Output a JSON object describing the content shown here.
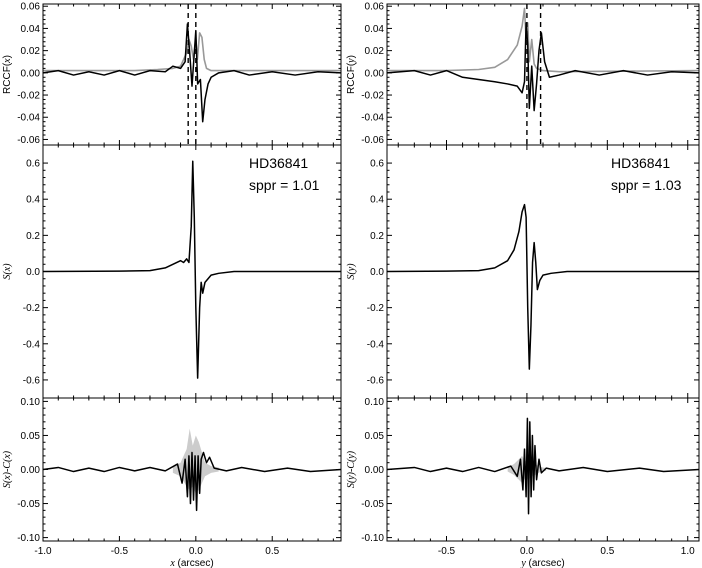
{
  "chart_data": [
    {
      "type": "line",
      "panel": "top-left",
      "ylabel_main": "RCCF(",
      "ylabel_var": "x",
      "ylabel_end": ")",
      "xlim": [
        -1.0,
        0.95
      ],
      "ylim": [
        -0.065,
        0.062
      ],
      "yticks": [
        -0.06,
        -0.04,
        -0.02,
        0.0,
        0.02,
        0.04,
        0.06
      ],
      "ytick_labels": [
        "-0.06",
        "-0.04",
        "-0.02",
        "0.00",
        "0.02",
        "0.04",
        "0.06"
      ],
      "vlines": [
        -0.05,
        0.0
      ],
      "series": [
        {
          "color": "#999999",
          "points": [
            [
              -1.0,
              0.002
            ],
            [
              -0.4,
              0.002
            ],
            [
              -0.25,
              0.003
            ],
            [
              -0.15,
              0.004
            ],
            [
              -0.1,
              0.006
            ],
            [
              -0.06,
              0.018
            ],
            [
              -0.045,
              0.03
            ],
            [
              -0.03,
              0.024
            ],
            [
              -0.015,
              0.012
            ],
            [
              0.0,
              0.03
            ],
            [
              0.01,
              0.012
            ],
            [
              0.025,
              0.036
            ],
            [
              0.04,
              0.032
            ],
            [
              0.055,
              0.012
            ],
            [
              0.07,
              0.004
            ],
            [
              0.1,
              0.002
            ],
            [
              0.2,
              0.002
            ],
            [
              0.95,
              0.002
            ]
          ]
        },
        {
          "color": "#000000",
          "points": [
            [
              -1.0,
              0.0
            ],
            [
              -0.9,
              0.002
            ],
            [
              -0.8,
              -0.002
            ],
            [
              -0.7,
              0.001
            ],
            [
              -0.6,
              -0.002
            ],
            [
              -0.5,
              0.002
            ],
            [
              -0.4,
              -0.002
            ],
            [
              -0.3,
              0.002
            ],
            [
              -0.2,
              0.001
            ],
            [
              -0.15,
              0.006
            ],
            [
              -0.1,
              0.004
            ],
            [
              -0.07,
              0.01
            ],
            [
              -0.055,
              0.044
            ],
            [
              -0.04,
              0.018
            ],
            [
              -0.025,
              -0.012
            ],
            [
              -0.012,
              0.014
            ],
            [
              0.0,
              0.038
            ],
            [
              0.012,
              -0.01
            ],
            [
              0.03,
              -0.006
            ],
            [
              0.045,
              -0.044
            ],
            [
              0.06,
              -0.024
            ],
            [
              0.08,
              -0.01
            ],
            [
              0.1,
              -0.004
            ],
            [
              0.15,
              0.0
            ],
            [
              0.25,
              0.002
            ],
            [
              0.35,
              -0.002
            ],
            [
              0.5,
              0.001
            ],
            [
              0.65,
              -0.002
            ],
            [
              0.8,
              0.001
            ],
            [
              0.95,
              0.0
            ]
          ]
        }
      ]
    },
    {
      "type": "line",
      "panel": "top-right",
      "ylabel_main": "RCCF(",
      "ylabel_var": "y",
      "ylabel_end": ")",
      "xlim": [
        -0.87,
        1.07
      ],
      "ylim": [
        -0.065,
        0.062
      ],
      "yticks": [
        -0.06,
        -0.04,
        -0.02,
        0.0,
        0.02,
        0.04,
        0.06
      ],
      "ytick_labels": [
        "-0.06",
        "-0.04",
        "-0.02",
        "0.00",
        "0.02",
        "0.04",
        "0.06"
      ],
      "vlines": [
        0.0,
        0.085
      ],
      "series": [
        {
          "color": "#999999",
          "points": [
            [
              -0.87,
              0.002
            ],
            [
              -0.5,
              0.002
            ],
            [
              -0.3,
              0.003
            ],
            [
              -0.2,
              0.005
            ],
            [
              -0.12,
              0.012
            ],
            [
              -0.06,
              0.025
            ],
            [
              -0.03,
              0.042
            ],
            [
              -0.015,
              0.058
            ],
            [
              -0.005,
              0.03
            ],
            [
              0.005,
              0.045
            ],
            [
              0.015,
              0.01
            ],
            [
              0.03,
              0.03
            ],
            [
              0.045,
              0.008
            ],
            [
              0.06,
              0.004
            ],
            [
              0.1,
              0.002
            ],
            [
              0.2,
              0.001
            ],
            [
              1.07,
              0.002
            ]
          ]
        },
        {
          "color": "#000000",
          "points": [
            [
              -0.87,
              0.0
            ],
            [
              -0.7,
              0.002
            ],
            [
              -0.6,
              -0.002
            ],
            [
              -0.5,
              0.002
            ],
            [
              -0.4,
              -0.004
            ],
            [
              -0.3,
              -0.006
            ],
            [
              -0.2,
              -0.008
            ],
            [
              -0.12,
              -0.01
            ],
            [
              -0.06,
              -0.012
            ],
            [
              -0.03,
              -0.018
            ],
            [
              -0.015,
              -0.008
            ],
            [
              -0.005,
              0.045
            ],
            [
              0.005,
              0.025
            ],
            [
              0.015,
              -0.032
            ],
            [
              0.03,
              0.006
            ],
            [
              0.045,
              -0.034
            ],
            [
              0.06,
              -0.01
            ],
            [
              0.075,
              0.02
            ],
            [
              0.09,
              0.036
            ],
            [
              0.11,
              0.01
            ],
            [
              0.14,
              -0.004
            ],
            [
              0.2,
              -0.002
            ],
            [
              0.3,
              0.002
            ],
            [
              0.45,
              -0.002
            ],
            [
              0.6,
              0.002
            ],
            [
              0.75,
              -0.002
            ],
            [
              0.9,
              0.001
            ],
            [
              1.07,
              0.0
            ]
          ]
        }
      ]
    },
    {
      "type": "line",
      "panel": "middle-left",
      "ylabel": "S(x)",
      "annotation_lines": [
        "HD36841",
        "sppr = 1.01"
      ],
      "xlim": [
        -1.0,
        0.95
      ],
      "ylim": [
        -0.7,
        0.7
      ],
      "yticks": [
        -0.6,
        -0.4,
        -0.2,
        0.0,
        0.2,
        0.4,
        0.6
      ],
      "ytick_labels": [
        "-0.6",
        "-0.4",
        "-0.2",
        "0.0",
        "0.2",
        "0.4",
        "0.6"
      ],
      "series": [
        {
          "color": "#000000",
          "points": [
            [
              -1.0,
              0.0
            ],
            [
              -0.5,
              0.002
            ],
            [
              -0.3,
              0.005
            ],
            [
              -0.2,
              0.02
            ],
            [
              -0.15,
              0.04
            ],
            [
              -0.1,
              0.06
            ],
            [
              -0.08,
              0.05
            ],
            [
              -0.06,
              0.07
            ],
            [
              -0.045,
              0.05
            ],
            [
              -0.03,
              0.25
            ],
            [
              -0.02,
              0.61
            ],
            [
              -0.01,
              0.3
            ],
            [
              0.0,
              -0.2
            ],
            [
              0.012,
              -0.59
            ],
            [
              0.025,
              -0.2
            ],
            [
              0.035,
              -0.06
            ],
            [
              0.045,
              -0.12
            ],
            [
              0.06,
              -0.06
            ],
            [
              0.08,
              -0.04
            ],
            [
              0.1,
              -0.02
            ],
            [
              0.15,
              -0.01
            ],
            [
              0.25,
              0.0
            ],
            [
              0.95,
              0.0
            ]
          ]
        }
      ]
    },
    {
      "type": "line",
      "panel": "middle-right",
      "ylabel": "S(y)",
      "annotation_lines": [
        "HD36841",
        "sppr = 1.03"
      ],
      "xlim": [
        -0.87,
        1.07
      ],
      "ylim": [
        -0.7,
        0.7
      ],
      "yticks": [
        -0.6,
        -0.4,
        -0.2,
        0.0,
        0.2,
        0.4,
        0.6
      ],
      "ytick_labels": [
        "-0.6",
        "-0.4",
        "-0.2",
        "0.0",
        "0.2",
        "0.4",
        "0.6"
      ],
      "series": [
        {
          "color": "#000000",
          "points": [
            [
              -0.87,
              0.0
            ],
            [
              -0.5,
              0.002
            ],
            [
              -0.3,
              0.005
            ],
            [
              -0.2,
              0.02
            ],
            [
              -0.12,
              0.06
            ],
            [
              -0.08,
              0.12
            ],
            [
              -0.05,
              0.22
            ],
            [
              -0.03,
              0.33
            ],
            [
              -0.015,
              0.37
            ],
            [
              -0.005,
              0.3
            ],
            [
              0.005,
              -0.2
            ],
            [
              0.015,
              -0.54
            ],
            [
              0.025,
              -0.3
            ],
            [
              0.035,
              0.05
            ],
            [
              0.045,
              0.16
            ],
            [
              0.055,
              0.05
            ],
            [
              0.065,
              -0.1
            ],
            [
              0.08,
              -0.05
            ],
            [
              0.1,
              -0.02
            ],
            [
              0.15,
              -0.01
            ],
            [
              0.25,
              0.0
            ],
            [
              1.07,
              0.0
            ]
          ]
        }
      ]
    },
    {
      "type": "line",
      "panel": "bottom-left",
      "ylabel": "S(x)-C(x)",
      "xlabel_var": "x",
      "xlabel_unit": " (arcsec)",
      "xlim": [
        -1.0,
        0.95
      ],
      "ylim": [
        -0.105,
        0.105
      ],
      "yticks": [
        -0.1,
        -0.05,
        0.0,
        0.05,
        0.1
      ],
      "ytick_labels": [
        "-0.10",
        "-0.05",
        "0.00",
        "0.05",
        "0.10"
      ],
      "xticks": [
        -1.0,
        -0.5,
        0.0,
        0.5
      ],
      "xtick_labels": [
        "-1.0",
        "-0.5",
        "0.0",
        "0.5"
      ],
      "band": {
        "color": "#cccccc",
        "x": [
          -0.15,
          -0.1,
          -0.06,
          -0.04,
          -0.02,
          0.0,
          0.02,
          0.04,
          0.06,
          0.1,
          0.15
        ],
        "upper": [
          0.005,
          0.01,
          0.03,
          0.06,
          0.035,
          0.05,
          0.04,
          0.025,
          0.01,
          0.005,
          0.003
        ],
        "lower": [
          -0.005,
          -0.01,
          -0.025,
          -0.03,
          -0.025,
          -0.035,
          -0.03,
          -0.02,
          -0.01,
          -0.005,
          -0.003
        ]
      },
      "series": [
        {
          "color": "#000000",
          "points": [
            [
              -1.0,
              0.0
            ],
            [
              -0.9,
              0.003
            ],
            [
              -0.8,
              -0.003
            ],
            [
              -0.7,
              0.002
            ],
            [
              -0.6,
              -0.003
            ],
            [
              -0.5,
              0.003
            ],
            [
              -0.4,
              -0.002
            ],
            [
              -0.3,
              0.003
            ],
            [
              -0.2,
              -0.002
            ],
            [
              -0.12,
              0.008
            ],
            [
              -0.09,
              -0.02
            ],
            [
              -0.07,
              0.015
            ],
            [
              -0.055,
              -0.04
            ],
            [
              -0.045,
              0.02
            ],
            [
              -0.035,
              -0.05
            ],
            [
              -0.025,
              0.025
            ],
            [
              -0.015,
              -0.045
            ],
            [
              -0.005,
              0.02
            ],
            [
              0.005,
              -0.06
            ],
            [
              0.015,
              0.02
            ],
            [
              0.025,
              -0.035
            ],
            [
              0.035,
              0.015
            ],
            [
              0.05,
              0.025
            ],
            [
              0.07,
              0.01
            ],
            [
              0.09,
              0.018
            ],
            [
              0.12,
              0.002
            ],
            [
              0.2,
              -0.002
            ],
            [
              0.3,
              0.003
            ],
            [
              0.45,
              -0.003
            ],
            [
              0.6,
              0.002
            ],
            [
              0.75,
              -0.003
            ],
            [
              0.95,
              0.0
            ]
          ]
        }
      ]
    },
    {
      "type": "line",
      "panel": "bottom-right",
      "ylabel": "S(y)-C(y)",
      "xlabel_var": "y",
      "xlabel_unit": " (arcsec)",
      "xlim": [
        -0.87,
        1.07
      ],
      "ylim": [
        -0.105,
        0.105
      ],
      "yticks": [
        -0.1,
        -0.05,
        0.0,
        0.05,
        0.1
      ],
      "ytick_labels": [
        "-0.10",
        "-0.05",
        "0.00",
        "0.05",
        "0.10"
      ],
      "xticks": [
        -0.5,
        0.0,
        0.5,
        1.0
      ],
      "xtick_labels": [
        "-0.5",
        "0.0",
        "0.5",
        "1.0"
      ],
      "band": {
        "color": "#cccccc",
        "x": [
          -0.12,
          -0.08,
          -0.05,
          -0.03,
          -0.01,
          0.01,
          0.03,
          0.05,
          0.08,
          0.12
        ],
        "upper": [
          0.003,
          0.008,
          0.015,
          0.02,
          0.012,
          0.015,
          0.01,
          0.008,
          0.004,
          0.002
        ],
        "lower": [
          -0.003,
          -0.008,
          -0.015,
          -0.02,
          -0.012,
          -0.015,
          -0.01,
          -0.008,
          -0.004,
          -0.002
        ]
      },
      "series": [
        {
          "color": "#000000",
          "points": [
            [
              -0.87,
              0.0
            ],
            [
              -0.7,
              0.003
            ],
            [
              -0.6,
              -0.003
            ],
            [
              -0.5,
              0.002
            ],
            [
              -0.4,
              -0.003
            ],
            [
              -0.3,
              0.003
            ],
            [
              -0.2,
              -0.003
            ],
            [
              -0.1,
              0.005
            ],
            [
              -0.06,
              -0.01
            ],
            [
              -0.04,
              0.015
            ],
            [
              -0.025,
              -0.03
            ],
            [
              -0.015,
              0.03
            ],
            [
              -0.005,
              -0.04
            ],
            [
              0.003,
              0.075
            ],
            [
              0.01,
              -0.065
            ],
            [
              0.018,
              0.07
            ],
            [
              0.026,
              -0.04
            ],
            [
              0.034,
              0.05
            ],
            [
              0.042,
              -0.03
            ],
            [
              0.05,
              0.035
            ],
            [
              0.06,
              -0.015
            ],
            [
              0.075,
              0.015
            ],
            [
              0.09,
              -0.005
            ],
            [
              0.12,
              0.002
            ],
            [
              0.2,
              -0.002
            ],
            [
              0.35,
              0.003
            ],
            [
              0.5,
              -0.003
            ],
            [
              0.7,
              0.002
            ],
            [
              0.85,
              -0.003
            ],
            [
              1.07,
              0.0
            ]
          ]
        }
      ]
    }
  ]
}
